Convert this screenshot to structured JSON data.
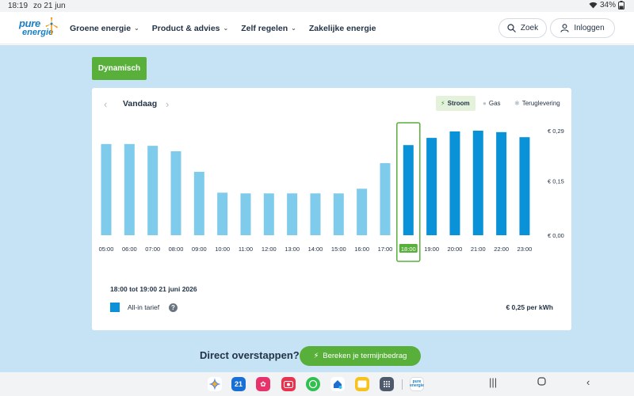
{
  "status_bar": {
    "time": "18:19",
    "date": "zo 21 jun",
    "battery": "34%"
  },
  "header": {
    "logo_line1": "pure",
    "logo_line2": "energie",
    "nav": [
      "Groene energie",
      "Product & advies",
      "Zelf regelen",
      "Zakelijke energie"
    ],
    "nav_has_dropdown": [
      true,
      true,
      true,
      false
    ],
    "search_label": "Zoek",
    "login_label": "Inloggen"
  },
  "tariff_tab": "Dynamisch",
  "chart_header": {
    "day": "Vandaag",
    "energy_tabs": [
      {
        "label": "Stroom",
        "active": true,
        "icon": "bolt-icon"
      },
      {
        "label": "Gas",
        "active": false,
        "icon": "flame-icon"
      },
      {
        "label": "Teruglevering",
        "active": false,
        "icon": "sun-icon"
      }
    ]
  },
  "chart_data": {
    "type": "bar",
    "categories": [
      "05:00",
      "06:00",
      "07:00",
      "08:00",
      "09:00",
      "10:00",
      "11:00",
      "12:00",
      "13:00",
      "14:00",
      "15:00",
      "16:00",
      "17:00",
      "18:00",
      "19:00",
      "20:00",
      "21:00",
      "22:00",
      "23:00"
    ],
    "values": [
      0.253,
      0.253,
      0.248,
      0.233,
      0.176,
      0.118,
      0.116,
      0.116,
      0.116,
      0.116,
      0.116,
      0.129,
      0.2,
      0.25,
      0.27,
      0.288,
      0.29,
      0.286,
      0.272
    ],
    "past_count": 13,
    "selected_index": 13,
    "ylim": [
      0,
      0.3
    ],
    "yticks": [
      0,
      0.15,
      0.29
    ],
    "ytick_labels": [
      "€ 0,00",
      "€ 0,15",
      "€ 0,29"
    ],
    "colors": {
      "past": "#7fcbeb",
      "future": "#0a92d8",
      "highlight": "#58b03a"
    }
  },
  "detail": {
    "period": "18:00 tot 19:00 21 juni 2026",
    "legend_label": "All-in tarief",
    "price": "€ 0,25 per kWh"
  },
  "cta": {
    "text": "Direct overstappen?",
    "button": "Bereken je termijnbedrag"
  },
  "dock": {
    "apps": [
      "gemini-icon",
      "calendar-icon",
      "flower-icon",
      "camera-icon",
      "whatsapp-icon",
      "home-icon",
      "notes-icon",
      "apps-grid-icon",
      "pure-energie-app-icon"
    ],
    "calendar_day": "21",
    "pure_app_line1": "pure",
    "pure_app_line2": "energie"
  }
}
